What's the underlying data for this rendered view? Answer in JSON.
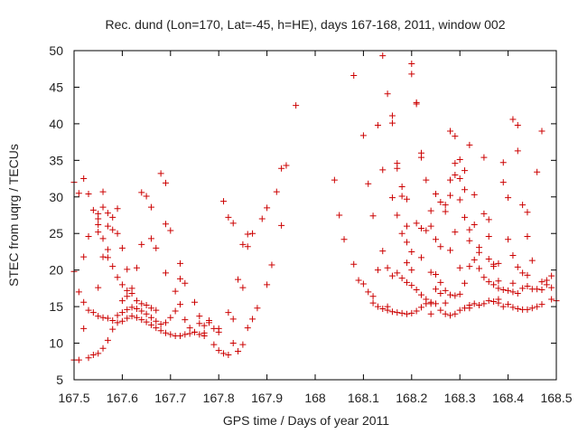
{
  "chart_data": {
    "type": "scatter",
    "title": "Rec. dund (Lon=170, Lat=-45, h=HE), days 167-168, 2011, window 002",
    "xlabel": "GPS time / Days of year 2011",
    "ylabel": "STEC from uqrg / TECUs",
    "xlim": [
      167.5,
      168.5
    ],
    "ylim": [
      5,
      50
    ],
    "x_ticks": [
      "167.5",
      "167.6",
      "167.7",
      "167.8",
      "167.9",
      "168",
      "168.1",
      "168.2",
      "168.3",
      "168.4",
      "168.5"
    ],
    "y_ticks": [
      "5",
      "10",
      "15",
      "20",
      "25",
      "30",
      "35",
      "40",
      "45",
      "50"
    ],
    "marker": "+",
    "grid": false,
    "legend": "none",
    "colors": {
      "points": "#cc0000",
      "axis": "#000000"
    },
    "points": [
      [
        167.5,
        32.0
      ],
      [
        167.51,
        30.5
      ],
      [
        167.52,
        32.5
      ],
      [
        167.53,
        30.4
      ],
      [
        167.54,
        28.2
      ],
      [
        167.55,
        27.7
      ],
      [
        167.55,
        27.0
      ],
      [
        167.55,
        26.2
      ],
      [
        167.56,
        30.7
      ],
      [
        167.56,
        28.6
      ],
      [
        167.57,
        27.8
      ],
      [
        167.58,
        27.2
      ],
      [
        167.59,
        28.4
      ],
      [
        167.57,
        26.0
      ],
      [
        167.58,
        25.5
      ],
      [
        167.59,
        25.0
      ],
      [
        167.55,
        25.2
      ],
      [
        167.53,
        24.6
      ],
      [
        167.56,
        24.3
      ],
      [
        167.57,
        22.8
      ],
      [
        167.56,
        21.8
      ],
      [
        167.57,
        21.7
      ],
      [
        167.58,
        20.5
      ],
      [
        167.59,
        19.0
      ],
      [
        167.6,
        18.0
      ],
      [
        167.61,
        17.2
      ],
      [
        167.55,
        17.6
      ],
      [
        167.52,
        21.8
      ],
      [
        167.5,
        19.8
      ],
      [
        167.51,
        17.0
      ],
      [
        167.52,
        15.6
      ],
      [
        167.53,
        14.5
      ],
      [
        167.54,
        14.2
      ],
      [
        167.55,
        13.7
      ],
      [
        167.56,
        13.5
      ],
      [
        167.57,
        13.4
      ],
      [
        167.58,
        13.1
      ],
      [
        167.59,
        13.8
      ],
      [
        167.6,
        14.2
      ],
      [
        167.61,
        14.6
      ],
      [
        167.62,
        14.9
      ],
      [
        167.63,
        14.7
      ],
      [
        167.64,
        14.4
      ],
      [
        167.65,
        14.0
      ],
      [
        167.66,
        13.5
      ],
      [
        167.67,
        13.0
      ],
      [
        167.68,
        12.6
      ],
      [
        167.69,
        12.8
      ],
      [
        167.7,
        13.5
      ],
      [
        167.71,
        14.4
      ],
      [
        167.72,
        15.3
      ],
      [
        167.61,
        16.4
      ],
      [
        167.62,
        16.8
      ],
      [
        167.63,
        15.8
      ],
      [
        167.64,
        15.4
      ],
      [
        167.65,
        15.2
      ],
      [
        167.66,
        14.8
      ],
      [
        167.67,
        14.5
      ],
      [
        167.6,
        15.8
      ],
      [
        167.62,
        17.5
      ],
      [
        167.63,
        20.3
      ],
      [
        167.61,
        20.1
      ],
      [
        167.6,
        23.0
      ],
      [
        167.64,
        23.5
      ],
      [
        167.64,
        30.6
      ],
      [
        167.65,
        30.1
      ],
      [
        167.66,
        28.6
      ],
      [
        167.66,
        24.3
      ],
      [
        167.67,
        23.0
      ],
      [
        167.68,
        33.2
      ],
      [
        167.69,
        31.9
      ],
      [
        167.69,
        26.3
      ],
      [
        167.69,
        19.6
      ],
      [
        167.7,
        25.4
      ],
      [
        167.71,
        17.1
      ],
      [
        167.72,
        20.9
      ],
      [
        167.72,
        18.8
      ],
      [
        167.73,
        18.2
      ],
      [
        167.73,
        13.2
      ],
      [
        167.74,
        12.1
      ],
      [
        167.75,
        15.6
      ],
      [
        167.75,
        11.5
      ],
      [
        167.76,
        12.7
      ],
      [
        167.76,
        13.7
      ],
      [
        167.77,
        11.4
      ],
      [
        167.77,
        12.4
      ],
      [
        167.78,
        12.8
      ],
      [
        167.78,
        13.1
      ],
      [
        167.79,
        9.8
      ],
      [
        167.79,
        12.0
      ],
      [
        167.8,
        11.5
      ],
      [
        167.8,
        12.0
      ],
      [
        167.8,
        9.0
      ],
      [
        167.81,
        8.6
      ],
      [
        167.81,
        29.4
      ],
      [
        167.82,
        27.2
      ],
      [
        167.82,
        14.2
      ],
      [
        167.83,
        13.3
      ],
      [
        167.83,
        26.4
      ],
      [
        167.84,
        18.7
      ],
      [
        167.85,
        17.6
      ],
      [
        167.85,
        23.5
      ],
      [
        167.86,
        23.2
      ],
      [
        167.86,
        24.9
      ],
      [
        167.87,
        25.0
      ],
      [
        167.88,
        14.8
      ],
      [
        167.89,
        27.0
      ],
      [
        167.9,
        18.0
      ],
      [
        167.9,
        28.5
      ],
      [
        167.91,
        20.7
      ],
      [
        167.92,
        30.7
      ],
      [
        167.93,
        26.1
      ],
      [
        167.93,
        33.9
      ],
      [
        167.94,
        34.3
      ],
      [
        167.96,
        42.5
      ],
      [
        167.82,
        8.4
      ],
      [
        167.83,
        10.0
      ],
      [
        167.84,
        8.9
      ],
      [
        167.85,
        9.8
      ],
      [
        167.86,
        12.1
      ],
      [
        167.87,
        13.3
      ],
      [
        167.5,
        7.7
      ],
      [
        167.51,
        7.7
      ],
      [
        167.52,
        12.0
      ],
      [
        167.53,
        8.0
      ],
      [
        167.54,
        8.4
      ],
      [
        167.55,
        8.6
      ],
      [
        167.56,
        9.3
      ],
      [
        167.57,
        10.4
      ],
      [
        167.58,
        11.9
      ],
      [
        167.59,
        12.8
      ],
      [
        167.6,
        13.0
      ],
      [
        167.61,
        13.4
      ],
      [
        167.62,
        13.7
      ],
      [
        167.63,
        13.5
      ],
      [
        167.64,
        13.2
      ],
      [
        167.65,
        12.9
      ],
      [
        167.66,
        12.5
      ],
      [
        167.67,
        12.1
      ],
      [
        167.68,
        11.7
      ],
      [
        167.69,
        11.4
      ],
      [
        167.7,
        11.2
      ],
      [
        167.71,
        11.0
      ],
      [
        167.72,
        11.0
      ],
      [
        167.73,
        11.2
      ],
      [
        167.74,
        11.3
      ],
      [
        167.75,
        11.5
      ],
      [
        167.76,
        11.2
      ],
      [
        167.77,
        11.0
      ],
      [
        168.04,
        32.3
      ],
      [
        168.05,
        27.5
      ],
      [
        168.06,
        24.2
      ],
      [
        168.08,
        46.6
      ],
      [
        168.08,
        20.8
      ],
      [
        168.09,
        18.6
      ],
      [
        168.1,
        38.4
      ],
      [
        168.11,
        31.8
      ],
      [
        168.11,
        17.0
      ],
      [
        168.12,
        27.4
      ],
      [
        168.12,
        15.5
      ],
      [
        168.13,
        39.8
      ],
      [
        168.14,
        33.7
      ],
      [
        168.14,
        22.6
      ],
      [
        168.14,
        49.3
      ],
      [
        168.15,
        44.1
      ],
      [
        168.15,
        15.0
      ],
      [
        168.16,
        41.1
      ],
      [
        168.16,
        40.1
      ],
      [
        168.16,
        29.9
      ],
      [
        168.17,
        34.6
      ],
      [
        168.17,
        33.9
      ],
      [
        168.17,
        27.5
      ],
      [
        168.18,
        31.4
      ],
      [
        168.18,
        30.1
      ],
      [
        168.18,
        25.0
      ],
      [
        168.19,
        29.7
      ],
      [
        168.19,
        26.0
      ],
      [
        168.19,
        23.8
      ],
      [
        168.2,
        48.2
      ],
      [
        168.2,
        46.8
      ],
      [
        168.2,
        22.5
      ],
      [
        168.21,
        42.7
      ],
      [
        168.21,
        42.9
      ],
      [
        168.21,
        26.4
      ],
      [
        168.22,
        36.0
      ],
      [
        168.22,
        35.4
      ],
      [
        168.22,
        25.7
      ],
      [
        168.23,
        32.3
      ],
      [
        168.23,
        25.4
      ],
      [
        168.24,
        28.1
      ],
      [
        168.24,
        26.0
      ],
      [
        168.25,
        30.4
      ],
      [
        168.25,
        24.2
      ],
      [
        168.26,
        29.3
      ],
      [
        168.26,
        23.2
      ],
      [
        168.27,
        28.9
      ],
      [
        168.27,
        28.0
      ],
      [
        168.28,
        39.0
      ],
      [
        168.28,
        32.3
      ],
      [
        168.28,
        30.2
      ],
      [
        168.29,
        38.3
      ],
      [
        168.29,
        34.6
      ],
      [
        168.29,
        33.0
      ],
      [
        168.3,
        35.1
      ],
      [
        168.3,
        32.5
      ],
      [
        168.3,
        29.6
      ],
      [
        168.31,
        33.6
      ],
      [
        168.31,
        31.0
      ],
      [
        168.31,
        27.2
      ],
      [
        168.32,
        37.1
      ],
      [
        168.32,
        25.5
      ],
      [
        168.32,
        24.0
      ],
      [
        168.33,
        30.3
      ],
      [
        168.33,
        26.2
      ],
      [
        168.34,
        23.1
      ],
      [
        168.35,
        35.4
      ],
      [
        168.35,
        27.7
      ],
      [
        168.36,
        26.9
      ],
      [
        168.36,
        24.6
      ],
      [
        168.37,
        20.5
      ],
      [
        168.38,
        18.5
      ],
      [
        168.39,
        34.7
      ],
      [
        168.39,
        32.0
      ],
      [
        168.4,
        29.9
      ],
      [
        168.4,
        24.2
      ],
      [
        168.41,
        22.0
      ],
      [
        168.41,
        40.6
      ],
      [
        168.42,
        39.8
      ],
      [
        168.42,
        36.3
      ],
      [
        168.42,
        20.4
      ],
      [
        168.43,
        28.9
      ],
      [
        168.44,
        27.9
      ],
      [
        168.44,
        24.6
      ],
      [
        168.44,
        19.3
      ],
      [
        168.45,
        21.3
      ],
      [
        168.46,
        33.4
      ],
      [
        168.47,
        39.0
      ],
      [
        168.47,
        18.4
      ],
      [
        168.48,
        18.6
      ],
      [
        168.49,
        19.2
      ],
      [
        168.49,
        16.0
      ],
      [
        168.5,
        15.8
      ],
      [
        168.13,
        15.0
      ],
      [
        168.14,
        14.7
      ],
      [
        168.15,
        14.5
      ],
      [
        168.16,
        14.3
      ],
      [
        168.17,
        14.2
      ],
      [
        168.18,
        14.1
      ],
      [
        168.19,
        14.0
      ],
      [
        168.2,
        14.1
      ],
      [
        168.21,
        14.4
      ],
      [
        168.22,
        14.9
      ],
      [
        168.23,
        15.4
      ],
      [
        168.24,
        15.6
      ],
      [
        168.24,
        14.0
      ],
      [
        168.25,
        15.4
      ],
      [
        168.26,
        14.5
      ],
      [
        168.27,
        14.0
      ],
      [
        168.28,
        13.8
      ],
      [
        168.29,
        14.0
      ],
      [
        168.3,
        14.5
      ],
      [
        168.31,
        14.8
      ],
      [
        168.32,
        15.2
      ],
      [
        168.33,
        15.4
      ],
      [
        168.34,
        15.2
      ],
      [
        168.35,
        15.4
      ],
      [
        168.36,
        15.8
      ],
      [
        168.37,
        15.7
      ],
      [
        168.38,
        16.0
      ],
      [
        168.39,
        15.0
      ],
      [
        168.4,
        15.3
      ],
      [
        168.41,
        14.9
      ],
      [
        168.42,
        14.7
      ],
      [
        168.43,
        14.6
      ],
      [
        168.44,
        14.6
      ],
      [
        168.45,
        14.8
      ],
      [
        168.46,
        15.0
      ],
      [
        168.47,
        15.3
      ],
      [
        168.48,
        18.0
      ],
      [
        168.49,
        17.6
      ],
      [
        168.17,
        19.6
      ],
      [
        168.18,
        18.9
      ],
      [
        168.19,
        18.3
      ],
      [
        168.2,
        17.9
      ],
      [
        168.21,
        17.3
      ],
      [
        168.22,
        16.6
      ],
      [
        168.23,
        16.0
      ],
      [
        168.24,
        15.4
      ],
      [
        168.25,
        19.4
      ],
      [
        168.26,
        18.3
      ],
      [
        168.27,
        17.2
      ],
      [
        168.28,
        16.6
      ],
      [
        168.29,
        16.5
      ],
      [
        168.3,
        16.7
      ],
      [
        168.31,
        18.2
      ],
      [
        168.32,
        20.5
      ],
      [
        168.33,
        21.4
      ],
      [
        168.34,
        20.2
      ],
      [
        168.35,
        19.0
      ],
      [
        168.36,
        18.4
      ],
      [
        168.37,
        18.0
      ],
      [
        168.38,
        17.5
      ],
      [
        168.39,
        17.3
      ],
      [
        168.4,
        17.2
      ],
      [
        168.41,
        17.0
      ],
      [
        168.42,
        16.8
      ],
      [
        168.43,
        17.5
      ],
      [
        168.44,
        17.8
      ],
      [
        168.45,
        17.4
      ],
      [
        168.46,
        17.4
      ],
      [
        168.47,
        17.3
      ],
      [
        168.3,
        20.3
      ],
      [
        168.28,
        22.7
      ],
      [
        168.29,
        25.2
      ],
      [
        168.34,
        22.4
      ],
      [
        168.36,
        21.5
      ],
      [
        168.37,
        20.8
      ],
      [
        168.41,
        18.2
      ],
      [
        168.43,
        19.6
      ],
      [
        168.38,
        20.9
      ],
      [
        168.19,
        21.0
      ],
      [
        168.2,
        20.0
      ],
      [
        168.22,
        21.7
      ],
      [
        168.24,
        19.7
      ],
      [
        168.25,
        17.4
      ],
      [
        168.26,
        16.8
      ],
      [
        168.27,
        15.5
      ],
      [
        168.32,
        14.8
      ],
      [
        168.38,
        15.5
      ],
      [
        168.12,
        16.4
      ],
      [
        168.13,
        20.0
      ],
      [
        168.15,
        20.3
      ],
      [
        168.16,
        19.2
      ],
      [
        168.1,
        18.1
      ]
    ]
  }
}
